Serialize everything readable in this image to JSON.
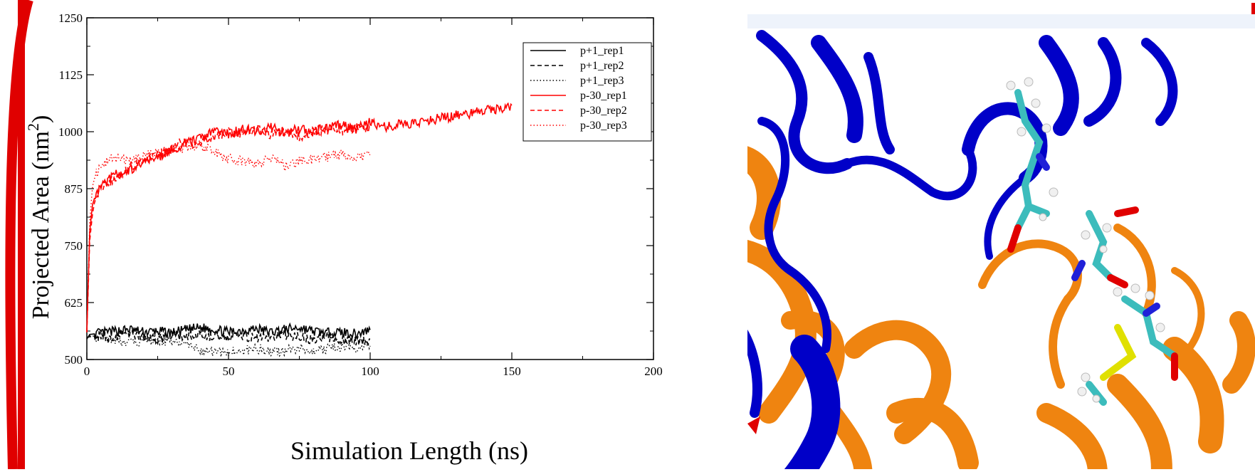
{
  "chart_data": {
    "type": "line",
    "title": "",
    "xlabel": "Simulation Length (ns)",
    "ylabel": "Projected Area (nm",
    "ylabel_sup": "2",
    "ylabel_close": ")",
    "xlim": [
      0,
      200
    ],
    "ylim": [
      500,
      1250
    ],
    "xticks": [
      0,
      50,
      100,
      150,
      200
    ],
    "xtick_labels": [
      "0",
      "50",
      "100",
      "150",
      "200"
    ],
    "yticks": [
      500,
      625,
      750,
      875,
      1000,
      1125,
      1250
    ],
    "ytick_labels": [
      "500",
      "625",
      "750",
      "875",
      "1000",
      "1125",
      "1250"
    ],
    "grid": false,
    "legend_position": "top-right",
    "series": [
      {
        "name": "p+1_rep1",
        "color": "#000000",
        "dash": "solid",
        "x": [
          0,
          1,
          5,
          10,
          15,
          20,
          25,
          30,
          35,
          40,
          45,
          50,
          55,
          60,
          65,
          70,
          75,
          80,
          85,
          90,
          95,
          100
        ],
        "y": [
          545,
          555,
          558,
          562,
          566,
          560,
          562,
          558,
          565,
          570,
          566,
          560,
          564,
          568,
          560,
          566,
          570,
          562,
          558,
          560,
          556,
          565
        ]
      },
      {
        "name": "p+1_rep2",
        "color": "#000000",
        "dash": "dashed",
        "x": [
          0,
          1,
          5,
          10,
          15,
          20,
          25,
          30,
          35,
          40,
          45,
          50,
          55,
          60,
          65,
          70,
          75,
          80,
          85,
          90,
          95,
          100
        ],
        "y": [
          548,
          550,
          552,
          548,
          556,
          550,
          545,
          552,
          548,
          554,
          550,
          548,
          552,
          546,
          550,
          554,
          548,
          545,
          550,
          542,
          540,
          545
        ]
      },
      {
        "name": "p+1_rep3",
        "color": "#000000",
        "dash": "dotted",
        "x": [
          0,
          1,
          5,
          10,
          15,
          20,
          25,
          30,
          35,
          40,
          45,
          50,
          55,
          60,
          65,
          70,
          75,
          80,
          85,
          90,
          95,
          100
        ],
        "y": [
          548,
          552,
          550,
          545,
          535,
          540,
          545,
          538,
          530,
          520,
          518,
          515,
          520,
          525,
          515,
          520,
          525,
          520,
          522,
          528,
          525,
          530
        ]
      },
      {
        "name": "p-30_rep1",
        "color": "#ff0000",
        "dash": "solid",
        "x": [
          0,
          1,
          2,
          3,
          5,
          8,
          10,
          15,
          20,
          25,
          30,
          35,
          40,
          45,
          50,
          55,
          60,
          65,
          70,
          75,
          80,
          85,
          90,
          95,
          100,
          105,
          110,
          115,
          120,
          125,
          130,
          135,
          140,
          145,
          150
        ],
        "y": [
          560,
          780,
          840,
          860,
          880,
          895,
          905,
          915,
          930,
          945,
          960,
          975,
          985,
          1000,
          995,
          1005,
          1000,
          1010,
          1000,
          1005,
          1000,
          1010,
          1015,
          1005,
          1020,
          1010,
          1015,
          1020,
          1025,
          1030,
          1035,
          1040,
          1045,
          1050,
          1058
        ]
      },
      {
        "name": "p-30_rep2",
        "color": "#ff0000",
        "dash": "dashed",
        "x": [
          0,
          1,
          2,
          3,
          5,
          8,
          10,
          15,
          20,
          25,
          30,
          35,
          40,
          45,
          50,
          55,
          60,
          65,
          70,
          75,
          80,
          85,
          90,
          95,
          100
        ],
        "y": [
          560,
          760,
          820,
          855,
          875,
          890,
          900,
          920,
          935,
          950,
          965,
          980,
          975,
          990,
          1000,
          995,
          1005,
          995,
          1000,
          990,
          1000,
          1005,
          1000,
          1010,
          1005
        ]
      },
      {
        "name": "p-30_rep3",
        "color": "#ff0000",
        "dash": "dotted",
        "x": [
          0,
          1,
          2,
          3,
          5,
          8,
          10,
          15,
          20,
          25,
          30,
          35,
          40,
          45,
          50,
          55,
          60,
          65,
          70,
          75,
          80,
          85,
          90,
          95,
          100
        ],
        "y": [
          560,
          800,
          880,
          905,
          925,
          940,
          940,
          935,
          945,
          955,
          960,
          965,
          970,
          955,
          940,
          935,
          930,
          940,
          925,
          935,
          940,
          945,
          950,
          945,
          950
        ]
      }
    ]
  },
  "molecule": {
    "colors": {
      "chain_a": "#0000c8",
      "chain_b": "#ef8410",
      "carbon": "#3cbcbc",
      "oxygen": "#e00000",
      "nitrogen": "#2020d8",
      "hydrogen": "#f0f0f0",
      "sulfur": "#e0e000",
      "background": "#ffffff"
    }
  },
  "frame": {
    "border_color": "#e00000"
  }
}
